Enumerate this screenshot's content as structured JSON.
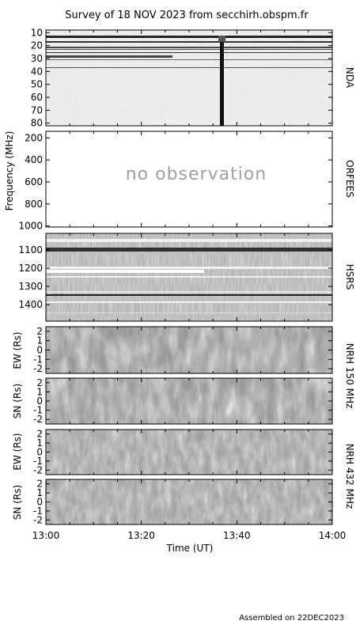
{
  "chart_data": {
    "type": "heatmap",
    "title": "Survey of 18 NOV 2023 from secchirh.obspm.fr",
    "xlabel": "Time (UT)",
    "x_ticks": [
      "13:00",
      "13:20",
      "13:40",
      "14:00"
    ],
    "xlim": [
      "13:00",
      "14:00"
    ],
    "footer": "Assembled on 22DEC2023",
    "panels": [
      {
        "name": "NDA",
        "ylabel": "",
        "ylim": [
          8,
          82
        ],
        "y_ticks": [
          "10",
          "20",
          "30",
          "40",
          "50",
          "60",
          "70",
          "80"
        ],
        "observed": true
      },
      {
        "name": "ORFEES",
        "ylabel": "Frequency (MHz)",
        "ylim": [
          140,
          1010
        ],
        "y_ticks": [
          "200",
          "400",
          "600",
          "800",
          "1000"
        ],
        "observed": false,
        "annotation": "no observation"
      },
      {
        "name": "HSRS",
        "ylabel": "",
        "ylim": [
          1010,
          1490
        ],
        "y_ticks": [
          "1100",
          "1200",
          "1300",
          "1400"
        ],
        "observed": true
      },
      {
        "name": "",
        "ylabel": "EW (Rs)",
        "ylim": [
          -2.5,
          2.5
        ],
        "y_ticks": [
          "2",
          "1",
          "0",
          "-1",
          "-2"
        ],
        "observed": true
      },
      {
        "name": "",
        "ylabel": "SN (Rs)",
        "ylim": [
          -2.5,
          2.5
        ],
        "y_ticks": [
          "2",
          "1",
          "0",
          "-1",
          "-2"
        ],
        "observed": true
      },
      {
        "name": "",
        "ylabel": "EW (Rs)",
        "ylim": [
          -2.5,
          2.5
        ],
        "y_ticks": [
          "2",
          "1",
          "0",
          "-1",
          "-2"
        ],
        "observed": true
      },
      {
        "name": "",
        "ylabel": "SN (Rs)",
        "ylim": [
          -2.5,
          2.5
        ],
        "y_ticks": [
          "2",
          "1",
          "0",
          "-1",
          "-2"
        ],
        "observed": true
      }
    ],
    "side_labels": [
      "NRH 150 MHz",
      "NRH 432 MHz"
    ]
  }
}
